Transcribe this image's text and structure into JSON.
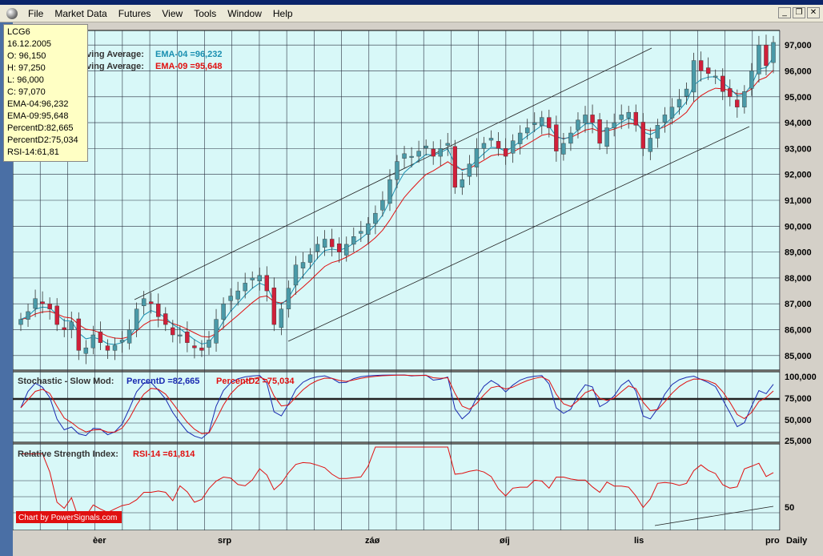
{
  "menu": [
    "File",
    "Market Data",
    "Futures",
    "View",
    "Tools",
    "Window",
    "Help"
  ],
  "window_buttons": [
    "_",
    "❐",
    "✕"
  ],
  "info": {
    "symbol": "LCG6",
    "date": "16.12.2005",
    "open": "O: 96,150",
    "high": "H: 97,250",
    "low": "L: 96,000",
    "close": "C: 97,070",
    "ema4": "EMA-04:96,232",
    "ema9": "EMA-09:95,648",
    "pd": "PercentD:82,665",
    "pd2": "PercentD2:75,034",
    "rsi": "RSI-14:61,81"
  },
  "price_panel": {
    "legend1_prefix": "ving Average:",
    "legend1_value": "EMA-04 =96,232",
    "legend2_prefix": "ving Average:",
    "legend2_value": "EMA-09 =95,648",
    "y_ticks": [
      "97,000",
      "96,000",
      "95,000",
      "94,000",
      "93,000",
      "92,000",
      "91,000",
      "90,000",
      "89,000",
      "88,000",
      "87,000",
      "86,000",
      "85,000"
    ]
  },
  "stoch_panel": {
    "title": "Stochastic - Slow Mod:",
    "pd_label": "PercentD =82,665",
    "pd2_label": "PercentD2 =75,034",
    "y_ticks": [
      "100,000",
      "75,000",
      "50,000",
      "25,000"
    ]
  },
  "rsi_panel": {
    "title": "Relative Strength Index:",
    "rsi_label": "RSI-14 =61,814",
    "y_ticks": [
      "50"
    ]
  },
  "credit": "Chart by PowerSignals.com",
  "x_labels": [
    "èer",
    "srp",
    "záø",
    "øíj",
    "lis",
    "pro"
  ],
  "period": "Daily",
  "colors": {
    "bg": "#d8f8f8",
    "up": "#4a9aa8",
    "down": "#d0203a",
    "ema4": "#1a8fb0",
    "ema9": "#e01010",
    "grid": "#2a3040"
  },
  "chart_data": {
    "type": "candlestick",
    "ylim": [
      84.5,
      97.5
    ],
    "closes": [
      86.4,
      86.7,
      87.2,
      87.0,
      86.8,
      86.2,
      86.0,
      86.3,
      85.2,
      85.3,
      85.8,
      85.5,
      85.2,
      85.4,
      85.6,
      86.0,
      86.8,
      87.2,
      87.0,
      86.5,
      86.2,
      85.8,
      85.8,
      85.5,
      85.3,
      85.2,
      85.6,
      86.4,
      87.0,
      87.3,
      87.5,
      87.8,
      88.0,
      88.1,
      87.5,
      86.2,
      86.8,
      87.6,
      88.5,
      88.6,
      88.9,
      89.3,
      89.5,
      89.2,
      89.0,
      89.3,
      89.6,
      89.8,
      90.1,
      90.5,
      91.0,
      91.8,
      92.5,
      92.8,
      92.7,
      92.9,
      93.1,
      92.7,
      93.0,
      93.2,
      91.5,
      91.8,
      92.4,
      93.0,
      93.2,
      93.4,
      93.0,
      92.7,
      93.3,
      93.6,
      93.8,
      94.0,
      94.2,
      93.8,
      92.9,
      93.2,
      93.6,
      94.1,
      94.3,
      94.0,
      93.2,
      93.8,
      94.0,
      94.3,
      94.4,
      93.9,
      93.0,
      93.4,
      93.9,
      94.3,
      94.6,
      94.9,
      95.3,
      96.4,
      96.0,
      95.9,
      95.8,
      95.2,
      95.0,
      94.6,
      95.2,
      96.0,
      97.0,
      96.2,
      97.1
    ]
  }
}
